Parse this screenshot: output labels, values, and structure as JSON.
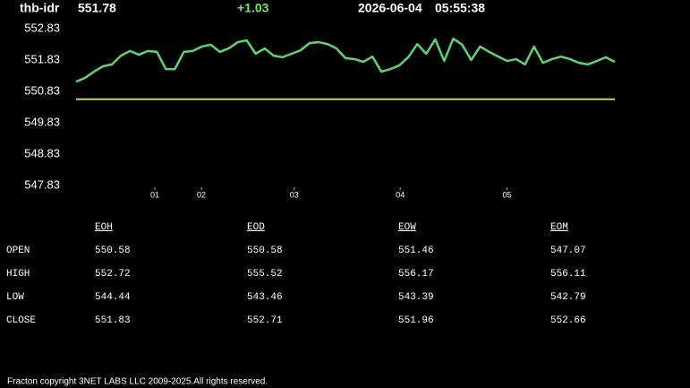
{
  "header": {
    "symbol": "thb-idr",
    "price": "551.78",
    "change": "+1.03",
    "date": "2026-06-04",
    "time": "05:55:38"
  },
  "chart_data": {
    "type": "line",
    "x": [
      0,
      1,
      2,
      3,
      4,
      5,
      6,
      7,
      8,
      9,
      10,
      11,
      12,
      13,
      14,
      15,
      16,
      17,
      18,
      19,
      20,
      21,
      22,
      23,
      24,
      25,
      26,
      27,
      28,
      29,
      30,
      31,
      32,
      33,
      34,
      35,
      36,
      37,
      38,
      39,
      40,
      41,
      42,
      43,
      44,
      45,
      46,
      47,
      48,
      49,
      50,
      51,
      52,
      53,
      54,
      55,
      56,
      57,
      58,
      59,
      60
    ],
    "series": [
      {
        "color": "#5fd36f",
        "values": [
          551.14,
          551.26,
          551.46,
          551.63,
          551.69,
          551.97,
          552.12,
          552.0,
          552.12,
          552.09,
          551.54,
          551.54,
          552.09,
          552.12,
          552.26,
          552.32,
          552.09,
          552.2,
          552.4,
          552.46,
          552.03,
          552.2,
          551.97,
          551.92,
          552.03,
          552.14,
          552.37,
          552.4,
          552.34,
          552.2,
          551.89,
          551.86,
          551.77,
          551.94,
          551.46,
          551.54,
          551.66,
          551.92,
          552.34,
          552.03,
          552.49,
          551.8,
          552.51,
          552.32,
          551.83,
          552.26,
          552.09,
          551.94,
          551.8,
          551.86,
          551.69,
          552.26,
          551.74,
          551.86,
          551.94,
          551.86,
          551.74,
          551.69,
          551.8,
          551.92,
          551.77
        ]
      }
    ],
    "hlines": [
      {
        "value": 550.58,
        "color": "#c8d85a"
      }
    ],
    "xlim": [
      0,
      60
    ],
    "xticks": [
      {
        "value": 8.77,
        "label": "01"
      },
      {
        "value": 13.96,
        "label": "02"
      },
      {
        "value": 24.3,
        "label": "03"
      },
      {
        "value": 36.1,
        "label": "04"
      },
      {
        "value": 48.0,
        "label": "05"
      }
    ],
    "ylim": [
      547.83,
      552.83
    ],
    "yticks": [
      547.83,
      548.83,
      549.83,
      550.83,
      551.83,
      552.83
    ],
    "grid": false
  },
  "table": {
    "columns": [
      "EOH",
      "EOD",
      "EOW",
      "EOM"
    ],
    "rows": [
      [
        "OPEN",
        "550.58",
        "550.58",
        "551.46",
        "547.07"
      ],
      [
        "HIGH",
        "552.72",
        "555.52",
        "556.17",
        "556.11"
      ],
      [
        "LOW",
        "544.44",
        "543.46",
        "543.39",
        "542.79"
      ],
      [
        "CLOSE",
        "551.83",
        "552.71",
        "551.96",
        "552.66"
      ]
    ]
  },
  "footer": "Fracton copyright 3NET LABS LLC 2009-2025.All rights reserved."
}
